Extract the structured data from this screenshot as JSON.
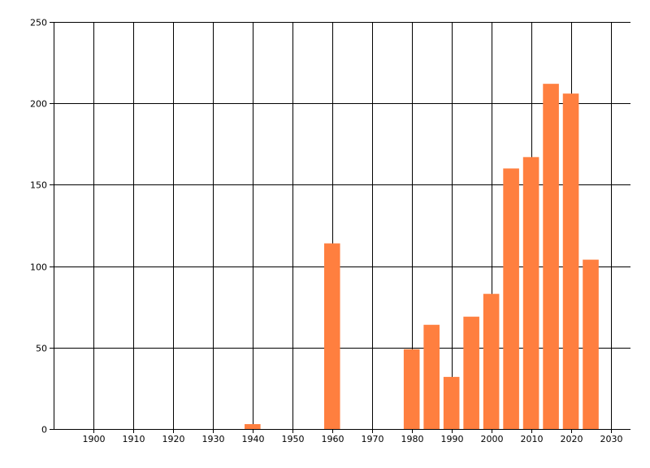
{
  "chart_data": {
    "type": "bar",
    "title": "",
    "xlabel": "",
    "ylabel": "",
    "xlim": [
      1890,
      2035
    ],
    "ylim": [
      0,
      250
    ],
    "x_ticks": [
      1900,
      1910,
      1920,
      1930,
      1940,
      1950,
      1960,
      1970,
      1980,
      1990,
      2000,
      2010,
      2020,
      2030
    ],
    "y_ticks": [
      0,
      50,
      100,
      150,
      200,
      250
    ],
    "grid": true,
    "legend": "none",
    "bar_color": "#ff7f3f",
    "bar_width_years": 4,
    "series": [
      {
        "x": [
          1940,
          1960,
          1980,
          1985,
          1990,
          1995,
          2000,
          2005,
          2010,
          2015,
          2020,
          2025
        ],
        "values": [
          3,
          114,
          49,
          64,
          32,
          69,
          83,
          160,
          167,
          212,
          206,
          104
        ]
      }
    ]
  }
}
